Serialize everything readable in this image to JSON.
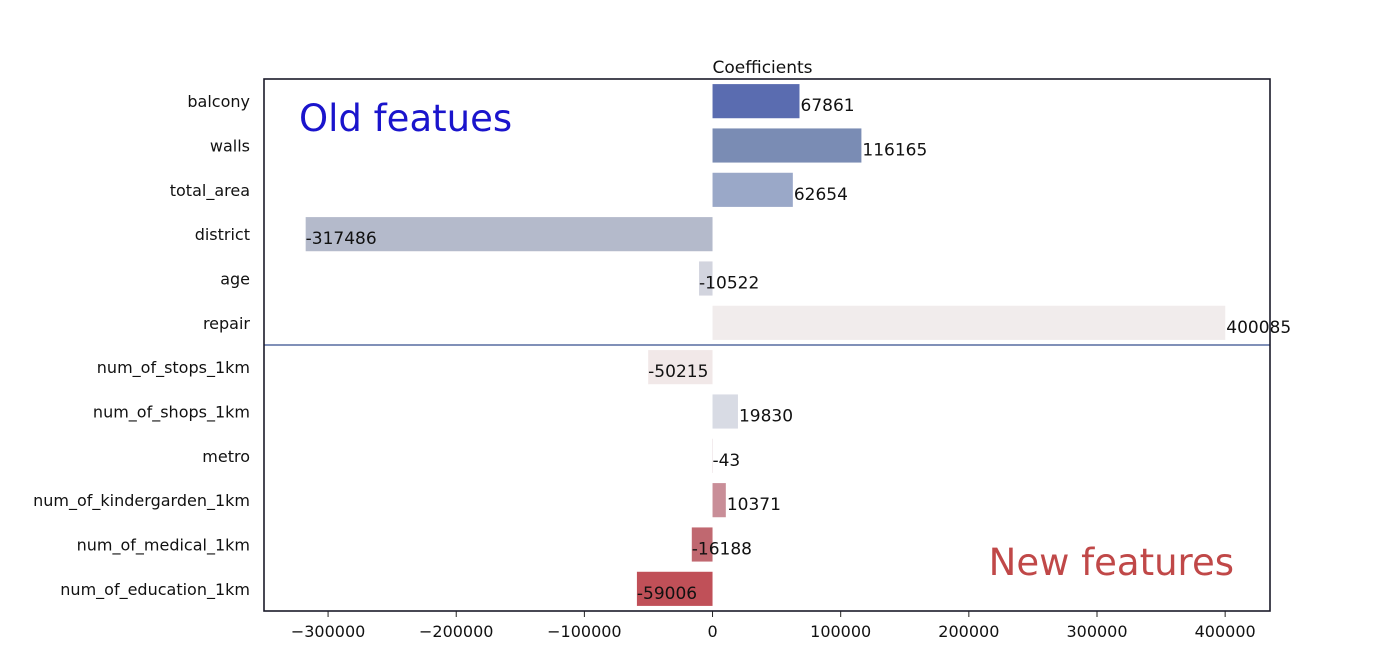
{
  "chart_data": {
    "type": "bar",
    "orientation": "horizontal",
    "title": "Coefficients",
    "xlabel": "",
    "ylabel": "",
    "xlim": [
      -350000,
      435000
    ],
    "x_ticks": [
      -300000,
      -200000,
      -100000,
      0,
      100000,
      200000,
      300000,
      400000
    ],
    "x_tick_labels": [
      "−300000",
      "−200000",
      "−100000",
      "0",
      "100000",
      "200000",
      "300000",
      "400000"
    ],
    "categories": [
      "balcony",
      "walls",
      "total_area",
      "district",
      "age",
      "repair",
      "num_of_stops_1km",
      "num_of_shops_1km",
      "metro",
      "num_of_kindergarden_1km",
      "num_of_medical_1km",
      "num_of_education_1km"
    ],
    "values": [
      67861,
      116165,
      62654,
      -317486,
      -10522,
      400085,
      -50215,
      19830,
      -43,
      10371,
      -16188,
      -59006
    ],
    "value_labels": [
      "67861",
      "116165",
      "62654",
      "-317486",
      "-10522",
      "400085",
      "-50215",
      "19830",
      "-43",
      "10371",
      "-16188",
      "-59006"
    ],
    "colors": [
      "#5a6cb0",
      "#7a8cb4",
      "#9aa8c8",
      "#b4bacb",
      "#d2d4de",
      "#f1ecec",
      "#f1e8e8",
      "#d8dbe4",
      "#e8d8dc",
      "#c98e98",
      "#c06870",
      "#c05058"
    ],
    "grid": false,
    "annotations": [
      {
        "text": "Old featues",
        "color": "#1a14cc"
      },
      {
        "text": "New features",
        "color": "#c04848"
      }
    ],
    "divider_after_index": 5,
    "divider_color": "#8090b8"
  }
}
